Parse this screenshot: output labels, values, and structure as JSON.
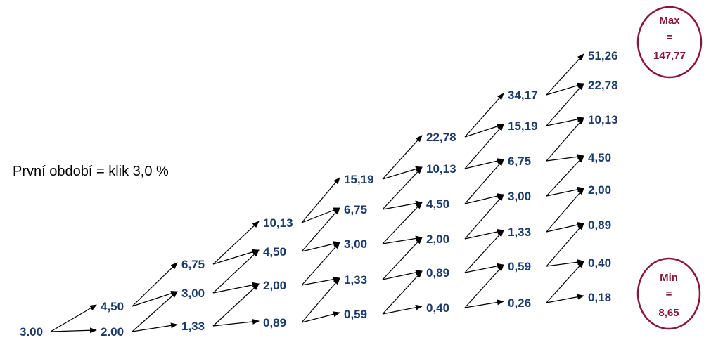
{
  "caption": "První období = klik 3,0 %",
  "max_badge": {
    "line1": "Max",
    "line2": "=",
    "line3": "147,77"
  },
  "min_badge": {
    "line1": "Min",
    "line2": "=",
    "line3": "8,65"
  },
  "colors": {
    "node_text": "#1b3a6b",
    "badge": "#8b1538",
    "arrow": "#000000"
  },
  "tree_columns": [
    [
      "3.00"
    ],
    [
      "4,50",
      "2.00"
    ],
    [
      "6,75",
      "3,00",
      "1,33"
    ],
    [
      "10,13",
      "4,50",
      "2,00",
      "0,89"
    ],
    [
      "15,19",
      "6,75",
      "3,00",
      "1,33",
      "0,59"
    ],
    [
      "22,78",
      "10,13",
      "4,50",
      "2,00",
      "0,89",
      "0,40"
    ],
    [
      "34,17",
      "15,19",
      "6,75",
      "3,00",
      "1,33",
      "0,59",
      "0,26"
    ],
    [
      "51,26",
      "22,78",
      "10,13",
      "4,50",
      "2,00",
      "0,89",
      "0,40",
      "0,18"
    ]
  ]
}
